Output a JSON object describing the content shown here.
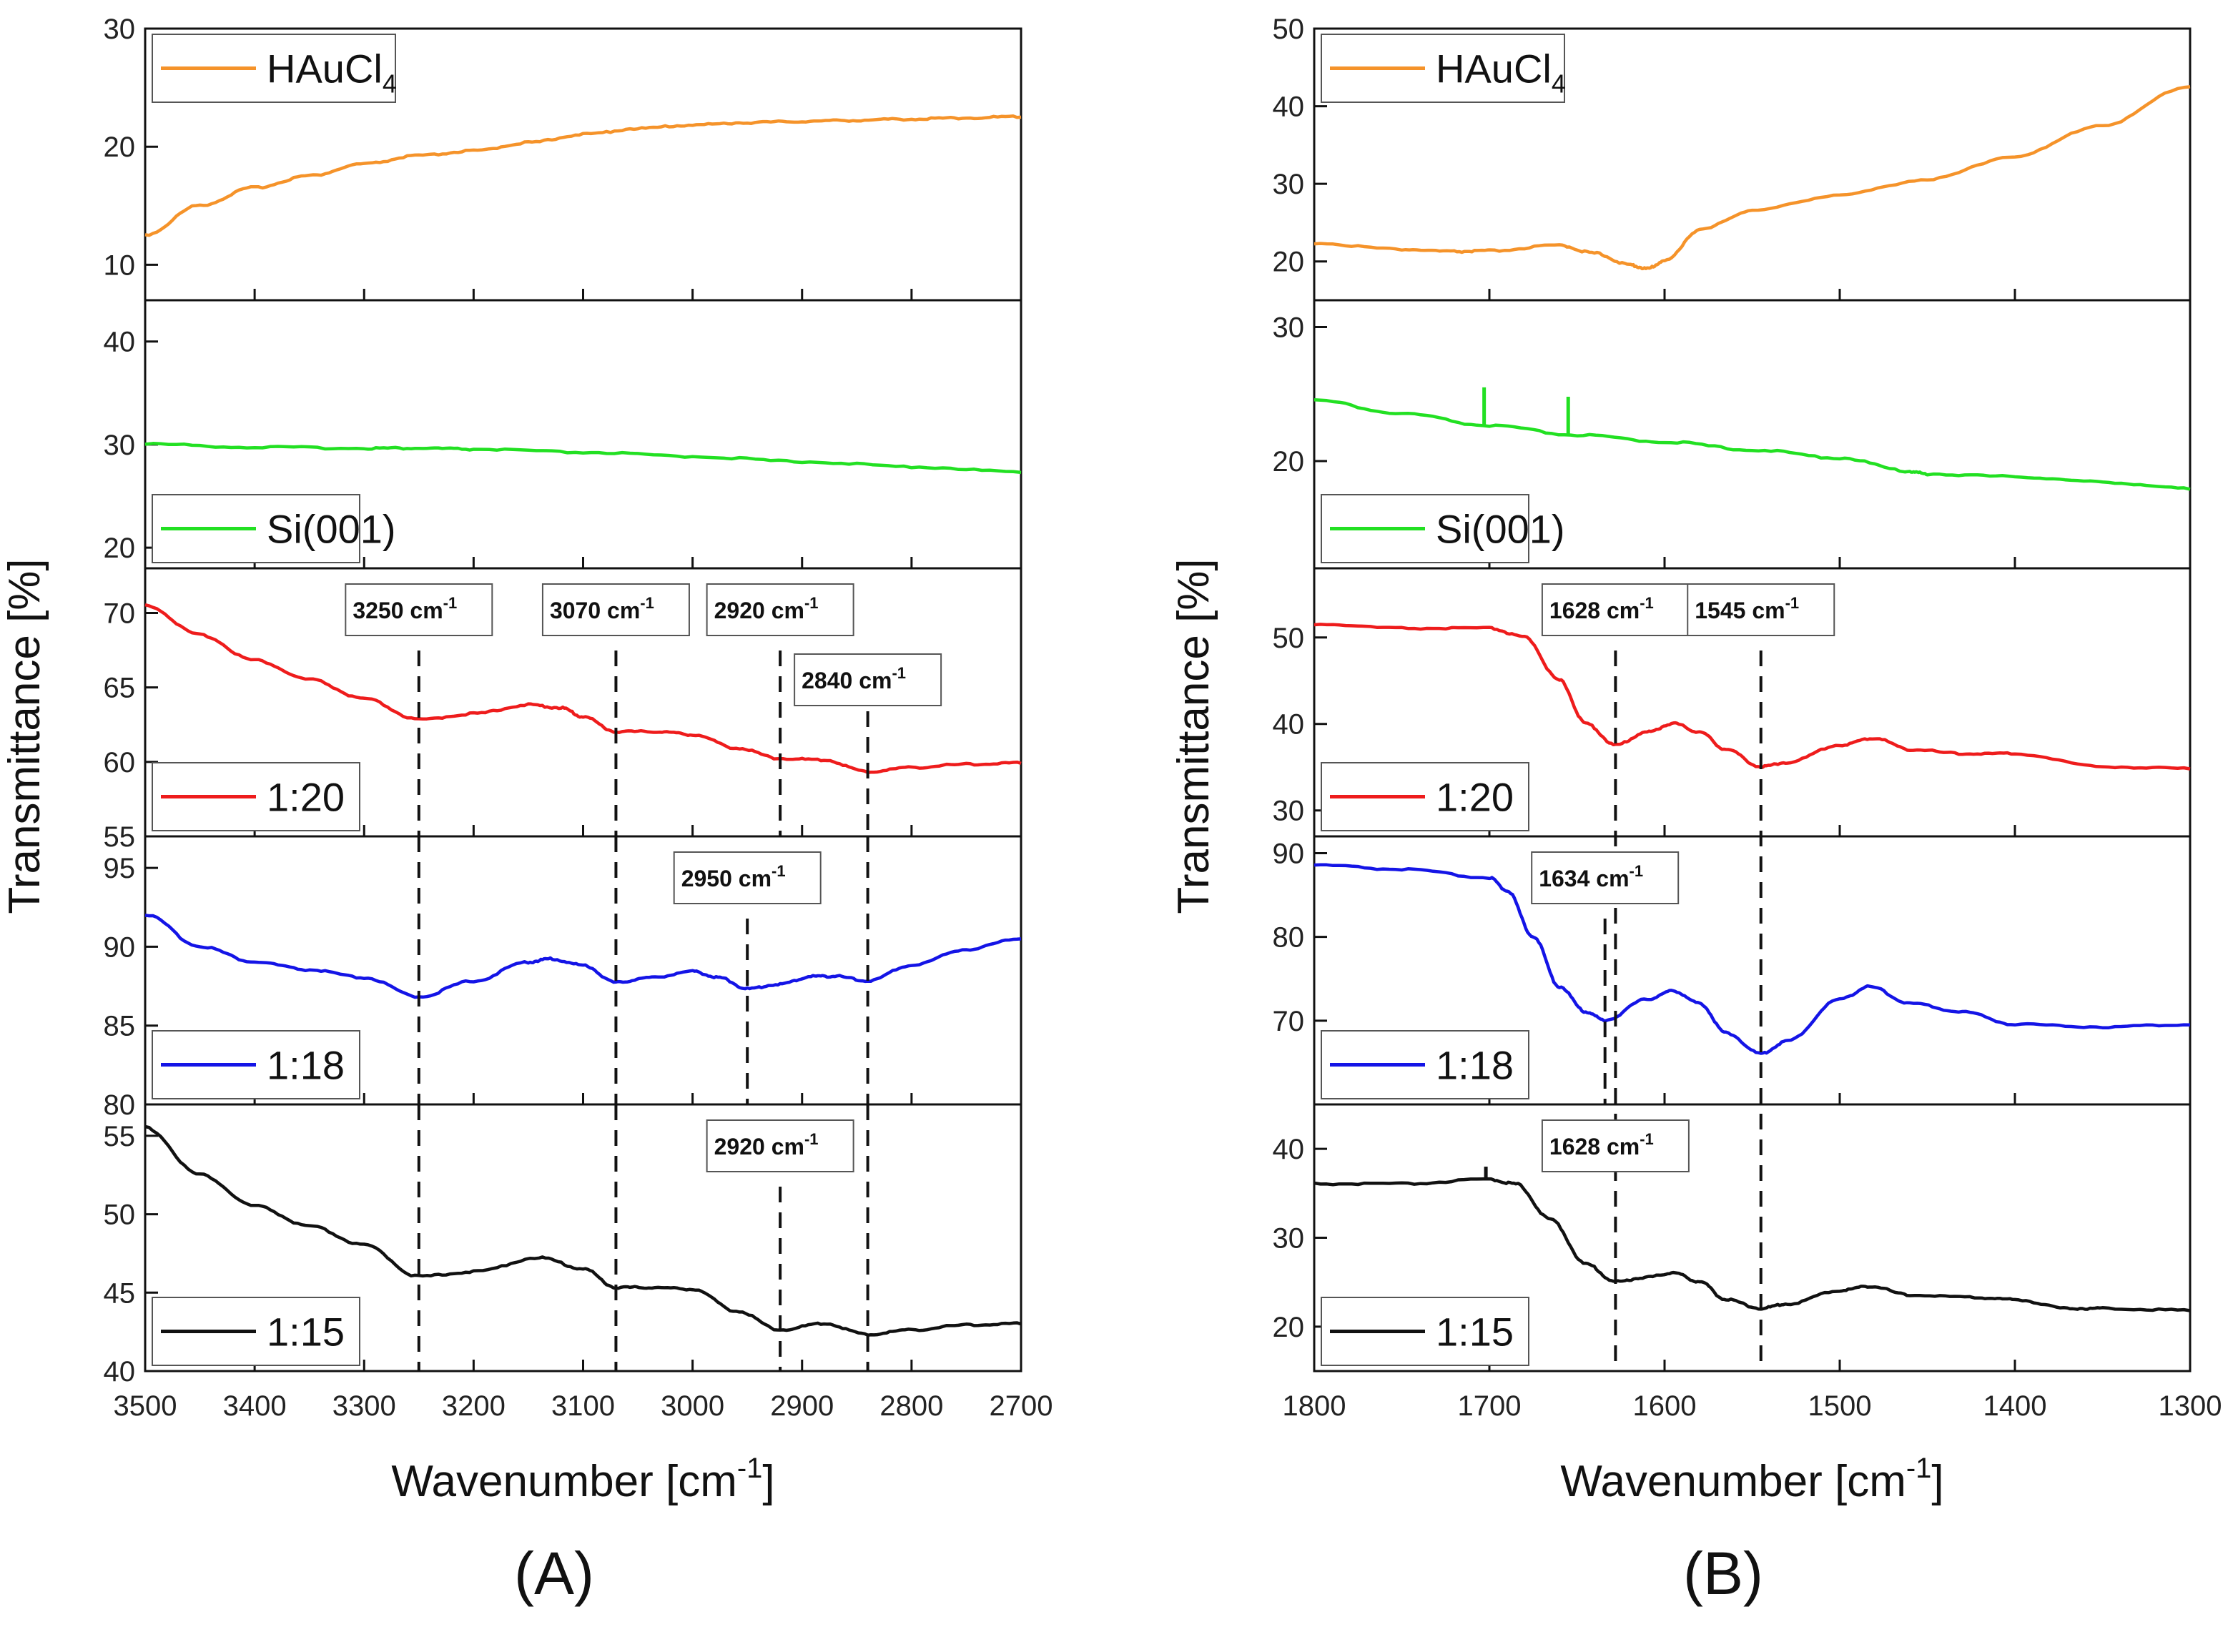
{
  "figure": {
    "labels": [
      "(A)",
      "(B)"
    ],
    "y_label": "Transmittance [%]",
    "x_label": "Wavenumber [cm-1]"
  },
  "chart_data": [
    {
      "type": "line",
      "id": "A",
      "panel_label": "(A)",
      "xlabel": "Wavenumber [cm-1]",
      "ylabel": "Transmittance [%]",
      "xlim": [
        3500,
        2700
      ],
      "xticks": [
        3500,
        3400,
        3300,
        3200,
        3100,
        3000,
        2900,
        2800,
        2700
      ],
      "subplots": [
        {
          "name": "HAuCl4",
          "legend_main": "HAuCl",
          "legend_sub": "4",
          "color": "#f5932a",
          "legend_pos": "top-left",
          "ylim": [
            7,
            30
          ],
          "yticks": [
            10,
            20,
            30
          ],
          "x": [
            3500,
            3450,
            3400,
            3350,
            3300,
            3250,
            3200,
            3150,
            3100,
            3050,
            3000,
            2950,
            2900,
            2850,
            2800,
            2750,
            2700
          ],
          "y": [
            12.5,
            15.0,
            16.5,
            17.5,
            18.5,
            19.2,
            19.6,
            20.3,
            21.0,
            21.5,
            21.8,
            22.0,
            22.1,
            22.2,
            22.3,
            22.4,
            22.5
          ]
        },
        {
          "name": "Si(001)",
          "legend_main": "Si(001)",
          "legend_sub": "",
          "color": "#22e022",
          "legend_pos": "bottom-left",
          "ylim": [
            18,
            44
          ],
          "yticks": [
            20,
            30,
            40
          ],
          "x": [
            3500,
            3400,
            3300,
            3250,
            3200,
            3100,
            3000,
            2900,
            2800,
            2700
          ],
          "y": [
            30.0,
            29.7,
            29.6,
            29.6,
            29.5,
            29.2,
            28.8,
            28.3,
            27.8,
            27.3
          ]
        },
        {
          "name": "1:20",
          "legend_main": "1:20",
          "legend_sub": "",
          "color": "#ee1c1c",
          "legend_pos": "bottom-left",
          "ylim": [
            55,
            73
          ],
          "yticks": [
            55,
            60,
            65,
            70
          ],
          "x": [
            3500,
            3450,
            3400,
            3350,
            3300,
            3250,
            3200,
            3150,
            3120,
            3100,
            3070,
            3030,
            3000,
            2960,
            2920,
            2880,
            2840,
            2800,
            2750,
            2700
          ],
          "y": [
            70.5,
            68.5,
            66.8,
            65.5,
            64.2,
            62.8,
            63.2,
            63.8,
            63.6,
            63.0,
            62.0,
            62.0,
            61.8,
            60.9,
            60.2,
            60.1,
            59.3,
            59.6,
            59.8,
            59.9
          ],
          "markers": [
            {
              "x": 3250,
              "label": "3250 cm",
              "sup": "-1",
              "row": 0
            },
            {
              "x": 3070,
              "label": "3070 cm",
              "sup": "-1",
              "row": 0
            },
            {
              "x": 2920,
              "label": "2920 cm",
              "sup": "-1",
              "row": 0
            },
            {
              "x": 2840,
              "label": "2840 cm",
              "sup": "-1",
              "row": 1
            }
          ]
        },
        {
          "name": "1:18",
          "legend_main": "1:18",
          "legend_sub": "",
          "color": "#1414e6",
          "legend_pos": "bottom-left",
          "ylim": [
            80,
            97
          ],
          "yticks": [
            80,
            85,
            90,
            95
          ],
          "x": [
            3500,
            3450,
            3400,
            3350,
            3300,
            3250,
            3200,
            3150,
            3130,
            3100,
            3070,
            3040,
            3000,
            2975,
            2950,
            2920,
            2890,
            2870,
            2840,
            2800,
            2750,
            2700
          ],
          "y": [
            92.0,
            90.0,
            89.0,
            88.5,
            88.0,
            86.8,
            87.8,
            89.0,
            89.2,
            88.8,
            87.7,
            88.0,
            88.4,
            88.0,
            87.3,
            87.6,
            88.1,
            88.1,
            87.8,
            88.8,
            89.8,
            90.5
          ],
          "markers": [
            {
              "x": 3250,
              "label": "",
              "sup": "",
              "row": -1
            },
            {
              "x": 3070,
              "label": "",
              "sup": "",
              "row": -1
            },
            {
              "x": 2950,
              "label": "2950 cm",
              "sup": "-1",
              "row": 0
            },
            {
              "x": 2840,
              "label": "",
              "sup": "",
              "row": -1
            }
          ]
        },
        {
          "name": "1:15",
          "legend_main": "1:15",
          "legend_sub": "",
          "color": "#111111",
          "legend_pos": "bottom-left",
          "ylim": [
            40,
            57
          ],
          "yticks": [
            40,
            45,
            50,
            55
          ],
          "x": [
            3500,
            3450,
            3400,
            3350,
            3300,
            3250,
            3200,
            3140,
            3100,
            3070,
            3040,
            3000,
            2960,
            2920,
            2880,
            2840,
            2800,
            2750,
            2700
          ],
          "y": [
            55.5,
            52.5,
            50.5,
            49.2,
            48.0,
            46.0,
            46.3,
            47.2,
            46.5,
            45.3,
            45.3,
            45.2,
            43.8,
            42.6,
            43.0,
            42.3,
            42.6,
            42.9,
            43.0
          ],
          "markers": [
            {
              "x": 3250,
              "label": "",
              "sup": "",
              "row": -1
            },
            {
              "x": 3070,
              "label": "",
              "sup": "",
              "row": -1
            },
            {
              "x": 2920,
              "label": "2920 cm",
              "sup": "-1",
              "row": 0
            },
            {
              "x": 2840,
              "label": "",
              "sup": "",
              "row": -1
            }
          ]
        }
      ]
    },
    {
      "type": "line",
      "id": "B",
      "panel_label": "(B)",
      "xlabel": "Wavenumber [cm-1]",
      "ylabel": "Transmittance [%]",
      "xlim": [
        1800,
        1300
      ],
      "xticks": [
        1800,
        1700,
        1600,
        1500,
        1400,
        1300
      ],
      "subplots": [
        {
          "name": "HAuCl4",
          "legend_main": "HAuCl",
          "legend_sub": "4",
          "color": "#f5932a",
          "legend_pos": "top-left",
          "ylim": [
            15,
            50
          ],
          "yticks": [
            20,
            30,
            40,
            50
          ],
          "x": [
            1800,
            1750,
            1720,
            1700,
            1660,
            1640,
            1620,
            1610,
            1600,
            1580,
            1550,
            1500,
            1450,
            1400,
            1350,
            1300
          ],
          "y": [
            22.3,
            21.5,
            21.2,
            21.3,
            22.0,
            21.0,
            19.5,
            19.0,
            20.0,
            24.0,
            26.5,
            28.5,
            30.5,
            33.5,
            37.5,
            42.5
          ]
        },
        {
          "name": "Si(001)",
          "legend_main": "Si(001)",
          "legend_sub": "",
          "color": "#22e022",
          "legend_pos": "bottom-left",
          "ylim": [
            12,
            32
          ],
          "yticks": [
            20,
            30
          ],
          "x": [
            1800,
            1750,
            1700,
            1650,
            1600,
            1550,
            1500,
            1460,
            1450,
            1400,
            1350,
            1300
          ],
          "y": [
            24.5,
            23.5,
            22.6,
            21.9,
            21.4,
            20.8,
            20.2,
            19.2,
            19.0,
            18.8,
            18.4,
            17.9
          ],
          "spikes": [
            {
              "x": 1703,
              "y": 25.5
            },
            {
              "x": 1655,
              "y": 24.8
            }
          ]
        },
        {
          "name": "1:20",
          "legend_main": "1:20",
          "legend_sub": "",
          "color": "#ee1c1c",
          "legend_pos": "bottom-left",
          "ylim": [
            27,
            58
          ],
          "yticks": [
            30,
            40,
            50
          ],
          "x": [
            1800,
            1750,
            1700,
            1680,
            1660,
            1645,
            1628,
            1610,
            1595,
            1580,
            1565,
            1545,
            1530,
            1500,
            1480,
            1460,
            1430,
            1400,
            1350,
            1300
          ],
          "y": [
            51.5,
            51.0,
            51.0,
            50.0,
            45.0,
            40.0,
            37.5,
            39.0,
            40.0,
            39.0,
            37.0,
            35.0,
            35.5,
            37.5,
            38.3,
            37.0,
            36.5,
            36.5,
            35.0,
            34.8
          ]
        },
        {
          "name": "1:18",
          "legend_main": "1:18",
          "legend_sub": "",
          "color": "#1414e6",
          "legend_pos": "bottom-left",
          "ylim": [
            60,
            92
          ],
          "yticks": [
            70,
            80,
            90
          ],
          "x": [
            1800,
            1750,
            1700,
            1690,
            1675,
            1660,
            1645,
            1634,
            1610,
            1595,
            1580,
            1565,
            1545,
            1530,
            1500,
            1483,
            1460,
            1430,
            1400,
            1350,
            1300
          ],
          "y": [
            88.5,
            88.0,
            87.0,
            85.5,
            80.0,
            74.0,
            71.0,
            70.0,
            72.5,
            73.5,
            72.0,
            68.5,
            66.0,
            67.5,
            72.5,
            74.0,
            72.0,
            71.0,
            69.5,
            69.2,
            69.5
          ]
        },
        {
          "name": "1:15",
          "legend_main": "1:15",
          "legend_sub": "",
          "color": "#111111",
          "legend_pos": "bottom-left",
          "ylim": [
            15,
            45
          ],
          "yticks": [
            20,
            30,
            40
          ],
          "x": [
            1800,
            1750,
            1700,
            1685,
            1665,
            1645,
            1628,
            1610,
            1595,
            1580,
            1565,
            1545,
            1530,
            1500,
            1483,
            1460,
            1420,
            1400,
            1370,
            1350,
            1300
          ],
          "y": [
            36.0,
            36.0,
            36.5,
            36.0,
            32.0,
            27.0,
            25.0,
            25.5,
            26.0,
            25.0,
            23.0,
            22.0,
            22.5,
            24.0,
            24.5,
            23.5,
            23.2,
            23.0,
            22.0,
            22.0,
            21.8
          ],
          "spikes": [
            {
              "x": 1702,
              "y": 38.0
            }
          ]
        }
      ],
      "shared_markers": [
        {
          "x": 1628,
          "subplots": [
            2,
            3,
            4
          ]
        },
        {
          "x": 1545,
          "subplots": [
            2,
            3,
            4
          ]
        }
      ],
      "marker_labels": [
        {
          "subplot": 2,
          "x": 1628,
          "label": "1628 cm",
          "sup": "-1"
        },
        {
          "subplot": 2,
          "x": 1545,
          "label": "1545 cm",
          "sup": "-1"
        },
        {
          "subplot": 3,
          "x": 1634,
          "label": "1634 cm",
          "sup": "-1"
        },
        {
          "subplot": 4,
          "x": 1628,
          "label": "1628 cm",
          "sup": "-1"
        }
      ]
    }
  ]
}
